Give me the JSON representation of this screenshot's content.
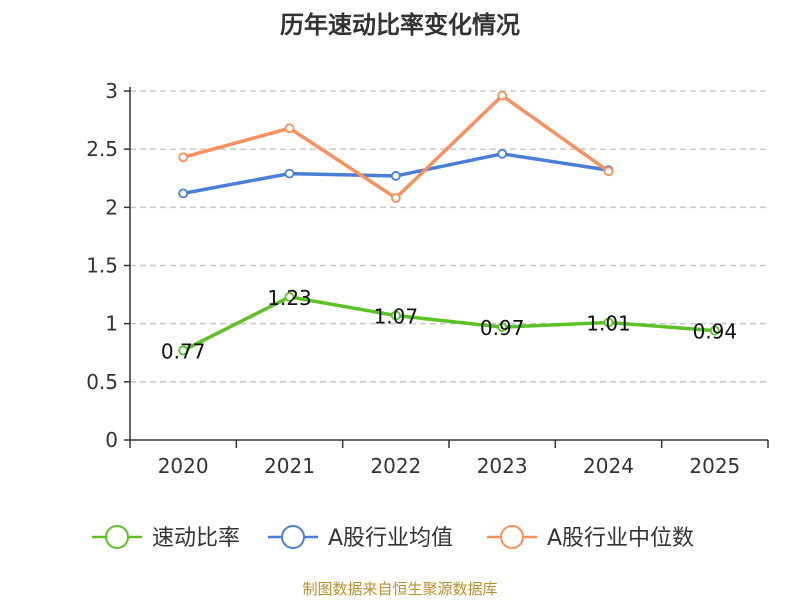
{
  "chart_data": {
    "type": "line",
    "title": "历年速动比率变化情况",
    "categories": [
      "2020",
      "2021",
      "2022",
      "2023",
      "2024",
      "2025"
    ],
    "ylim": [
      0,
      3
    ],
    "yticks": [
      "0",
      "0.5",
      "1",
      "1.5",
      "2",
      "2.5",
      "3"
    ],
    "grid": true,
    "legend_position": "bottom",
    "series": [
      {
        "name": "速动比率",
        "color": "#5bc224",
        "values": [
          0.77,
          1.23,
          1.07,
          0.97,
          1.01,
          0.94
        ],
        "labels": [
          "0.77",
          "1.23",
          "1.07",
          "0.97",
          "1.01",
          "0.94"
        ],
        "show_labels": true
      },
      {
        "name": "A股行业均值",
        "color": "#4a7fd8",
        "values": [
          2.12,
          2.29,
          2.27,
          2.46,
          2.32,
          null
        ],
        "show_labels": false
      },
      {
        "name": "A股行业中位数",
        "color": "#fb8f5d",
        "values": [
          2.43,
          2.68,
          2.08,
          2.96,
          2.31,
          null
        ],
        "show_labels": false
      }
    ]
  },
  "source_text": "制图数据来自恒生聚源数据库"
}
